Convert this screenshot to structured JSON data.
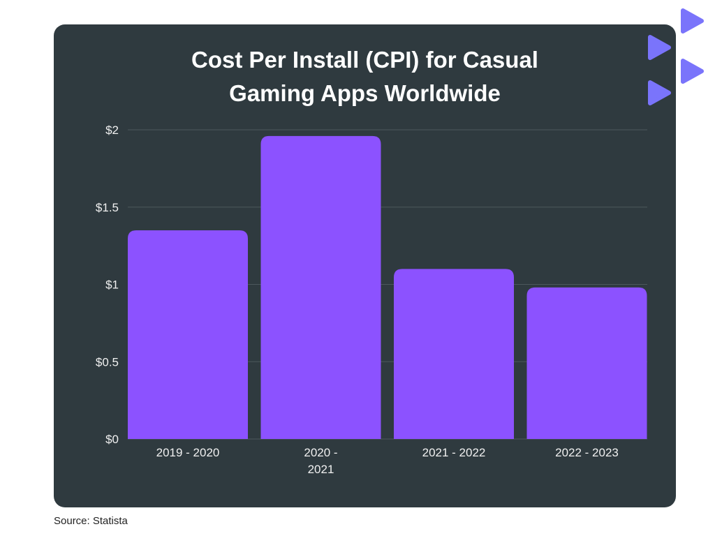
{
  "chart_data": {
    "type": "bar",
    "title": [
      "Cost Per Install (CPI) for Casual",
      "Gaming Apps Worldwide"
    ],
    "categories": [
      [
        "2019 - 2020"
      ],
      [
        "2020 -",
        "2021"
      ],
      [
        "2021 - 2022"
      ],
      [
        "2022 - 2023"
      ]
    ],
    "values": [
      1.35,
      1.96,
      1.1,
      0.98
    ],
    "yticks": [
      0,
      0.5,
      1,
      1.5,
      2
    ],
    "ytick_labels": [
      "$0",
      "$0.5",
      "$1",
      "$1.5",
      "$2"
    ],
    "ylim": [
      0,
      2
    ],
    "xlabel": "",
    "ylabel": "",
    "grid": true,
    "bar_color": "#8c52ff"
  },
  "source": "Source: Statista",
  "colors": {
    "card": "#2f3a3f",
    "accent": "#7a74fb"
  }
}
